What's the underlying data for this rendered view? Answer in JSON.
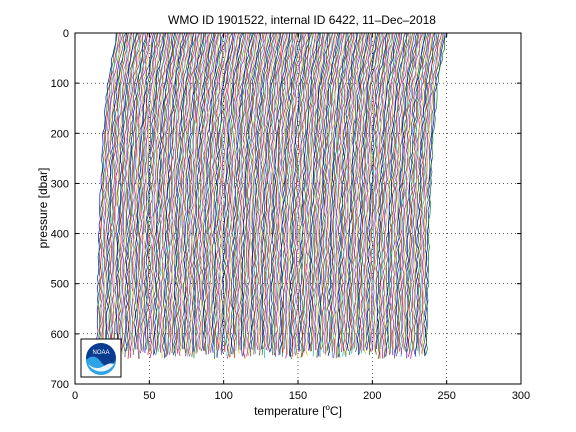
{
  "chart_data": {
    "type": "line",
    "title": "WMO ID 1901522, internal ID 6422, 11–Dec–2018",
    "xlabel": "temperature [",
    "xlabel_unit": "C]",
    "xlabel_sup": "o",
    "ylabel": "pressure [dbar]",
    "xlim": [
      0,
      300
    ],
    "ylim": [
      700,
      0
    ],
    "y_reversed": true,
    "grid": true,
    "legend": "none",
    "x_ticks": [
      "0",
      "50",
      "100",
      "150",
      "200",
      "250",
      "300"
    ],
    "y_ticks": [
      "0",
      "100",
      "200",
      "300",
      "400",
      "500",
      "600",
      "700"
    ],
    "profiles": {
      "count": 240,
      "offset_step": 1,
      "first_surface_temperature": 28,
      "last_surface_temperature": 250,
      "pressure_range": [
        0,
        650
      ],
      "shape_pressures": [
        0,
        50,
        100,
        200,
        300,
        400,
        500,
        600,
        650
      ],
      "shape_offsets": [
        0,
        -3,
        -6,
        -9,
        -10.5,
        -12,
        -12.5,
        -13,
        -13.5
      ]
    },
    "series_colors": [
      "#0000ff",
      "#008000",
      "#ff0000",
      "#00bfbf",
      "#bf00bf",
      "#bfbf00",
      "#404040"
    ],
    "logo": {
      "name": "noaa-logo",
      "text": "NOAA"
    }
  }
}
